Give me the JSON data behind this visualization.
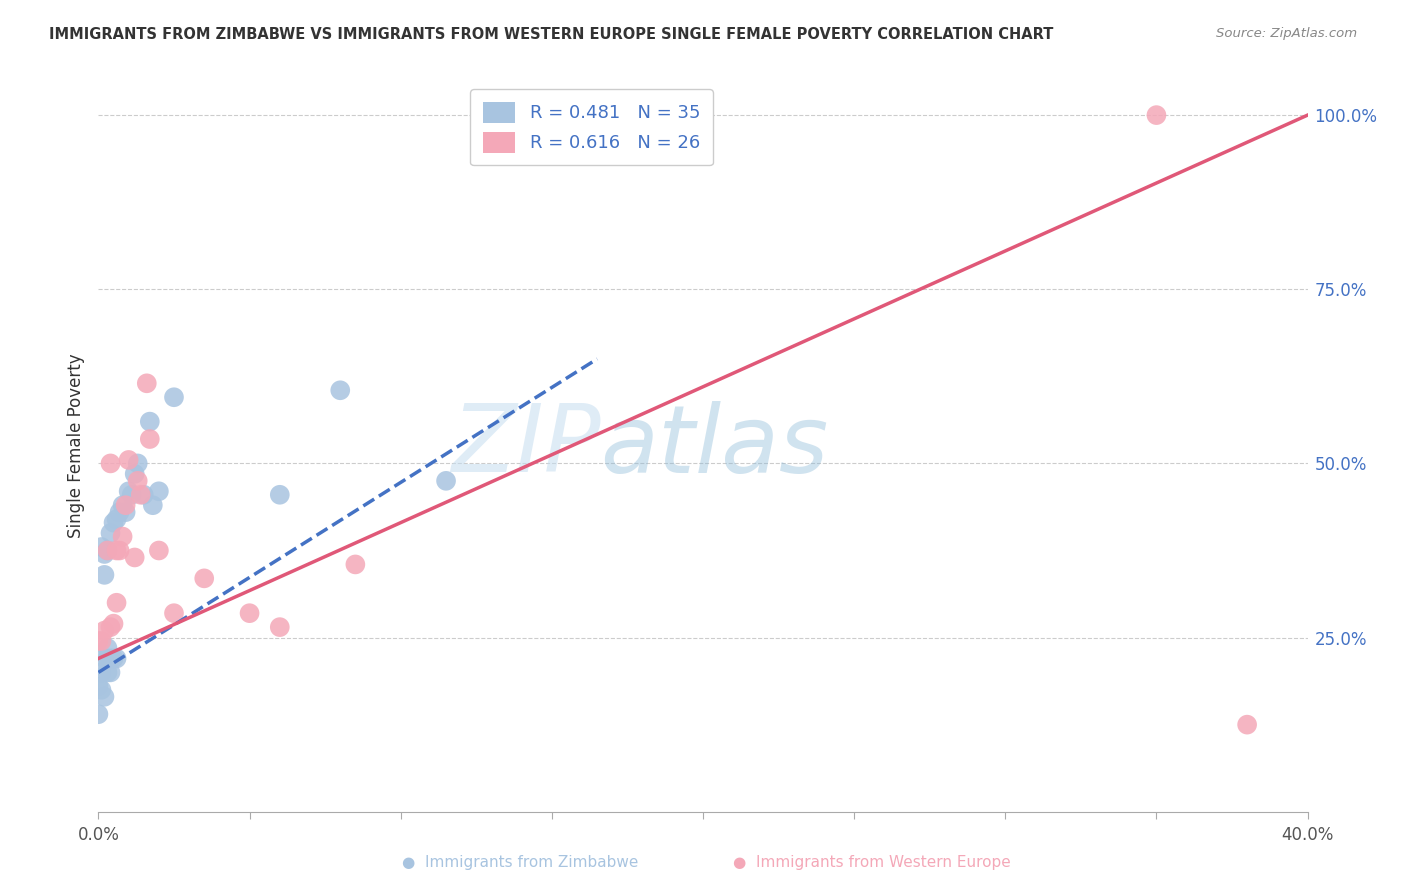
{
  "title": "IMMIGRANTS FROM ZIMBABWE VS IMMIGRANTS FROM WESTERN EUROPE SINGLE FEMALE POVERTY CORRELATION CHART",
  "source": "Source: ZipAtlas.com",
  "ylabel": "Single Female Poverty",
  "xlim": [
    0.0,
    0.4
  ],
  "ylim": [
    0.0,
    1.05
  ],
  "x_ticks": [
    0.0,
    0.05,
    0.1,
    0.15,
    0.2,
    0.25,
    0.3,
    0.35,
    0.4
  ],
  "x_tick_labels": [
    "0.0%",
    "",
    "",
    "",
    "",
    "",
    "",
    "",
    "40.0%"
  ],
  "y_ticks_right": [
    0.25,
    0.5,
    0.75,
    1.0
  ],
  "y_tick_labels_right": [
    "25.0%",
    "50.0%",
    "75.0%",
    "100.0%"
  ],
  "legend1_label": "R = 0.481   N = 35",
  "legend2_label": "R = 0.616   N = 26",
  "zimbabwe_color": "#a8c4e0",
  "western_europe_color": "#f4a8b8",
  "line_zimbabwe_color": "#4472c4",
  "line_western_europe_color": "#e05878",
  "zimbabwe_line_x0": 0.0,
  "zimbabwe_line_y0": 0.2,
  "zimbabwe_line_x1": 0.165,
  "zimbabwe_line_y1": 0.65,
  "western_europe_line_x0": 0.0,
  "western_europe_line_y0": 0.22,
  "western_europe_line_x1": 0.4,
  "western_europe_line_y1": 1.0,
  "zimbabwe_x": [
    0.0,
    0.0,
    0.001,
    0.001,
    0.001,
    0.002,
    0.002,
    0.002,
    0.002,
    0.003,
    0.003,
    0.003,
    0.003,
    0.004,
    0.004,
    0.004,
    0.005,
    0.005,
    0.006,
    0.006,
    0.007,
    0.008,
    0.009,
    0.01,
    0.011,
    0.012,
    0.013,
    0.015,
    0.017,
    0.018,
    0.02,
    0.025,
    0.06,
    0.08,
    0.115
  ],
  "zimbabwe_y": [
    0.14,
    0.18,
    0.175,
    0.2,
    0.38,
    0.165,
    0.22,
    0.34,
    0.37,
    0.2,
    0.22,
    0.235,
    0.375,
    0.2,
    0.22,
    0.4,
    0.22,
    0.415,
    0.22,
    0.42,
    0.43,
    0.44,
    0.43,
    0.46,
    0.455,
    0.485,
    0.5,
    0.455,
    0.56,
    0.44,
    0.46,
    0.595,
    0.455,
    0.605,
    0.475
  ],
  "western_europe_x": [
    0.0,
    0.001,
    0.002,
    0.003,
    0.004,
    0.004,
    0.005,
    0.006,
    0.006,
    0.007,
    0.008,
    0.009,
    0.01,
    0.012,
    0.013,
    0.014,
    0.016,
    0.017,
    0.02,
    0.025,
    0.035,
    0.05,
    0.06,
    0.085,
    0.35,
    0.38
  ],
  "western_europe_y": [
    0.245,
    0.245,
    0.26,
    0.375,
    0.265,
    0.5,
    0.27,
    0.3,
    0.375,
    0.375,
    0.395,
    0.44,
    0.505,
    0.365,
    0.475,
    0.455,
    0.615,
    0.535,
    0.375,
    0.285,
    0.335,
    0.285,
    0.265,
    0.355,
    1.0,
    0.125
  ]
}
